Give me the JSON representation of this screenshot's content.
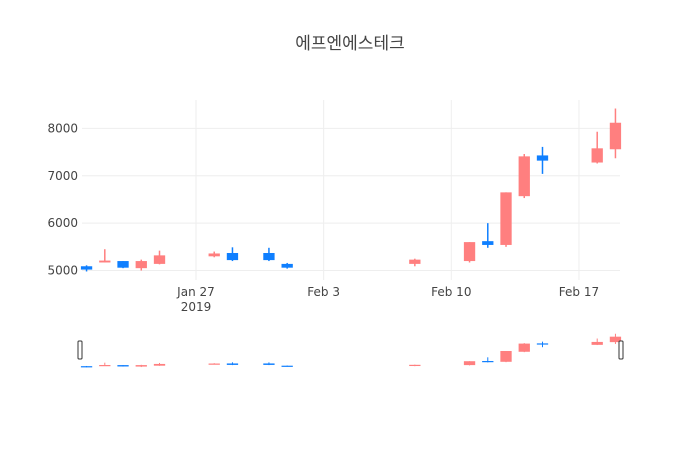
{
  "chart_data": {
    "type": "candlestick",
    "title": "에프엔에스테크",
    "colors": {
      "increasing": "#ff7f7f",
      "decreasing": "#0f7fff"
    },
    "ylim": [
      4800,
      8600
    ],
    "y_ticks": [
      5000,
      6000,
      7000,
      8000
    ],
    "y_tick_labels": [
      "5000",
      "6000",
      "7000",
      "8000"
    ],
    "x_ticks": [
      {
        "x": "2019-01-27",
        "label": "Jan 27",
        "sublabel": "2019"
      },
      {
        "x": "2019-02-03",
        "label": "Feb 3",
        "sublabel": ""
      },
      {
        "x": "2019-02-10",
        "label": "Feb 10",
        "sublabel": ""
      },
      {
        "x": "2019-02-17",
        "label": "Feb 17",
        "sublabel": ""
      }
    ],
    "xlim": [
      "2019-01-20T18:00",
      "2019-02-19T06:00"
    ],
    "grid": true,
    "rangeslider": true,
    "candles": [
      {
        "x": "2019-01-21",
        "open": 5090,
        "high": 5110,
        "low": 4980,
        "close": 5020
      },
      {
        "x": "2019-01-22",
        "open": 5170,
        "high": 5450,
        "low": 5170,
        "close": 5210
      },
      {
        "x": "2019-01-23",
        "open": 5200,
        "high": 5200,
        "low": 5050,
        "close": 5060
      },
      {
        "x": "2019-01-24",
        "open": 5050,
        "high": 5230,
        "low": 5000,
        "close": 5200
      },
      {
        "x": "2019-01-25",
        "open": 5140,
        "high": 5420,
        "low": 5130,
        "close": 5320
      },
      {
        "x": "2019-01-28",
        "open": 5300,
        "high": 5400,
        "low": 5280,
        "close": 5360
      },
      {
        "x": "2019-01-29",
        "open": 5370,
        "high": 5490,
        "low": 5200,
        "close": 5220
      },
      {
        "x": "2019-01-31",
        "open": 5370,
        "high": 5480,
        "low": 5200,
        "close": 5220
      },
      {
        "x": "2019-02-01",
        "open": 5140,
        "high": 5160,
        "low": 5040,
        "close": 5060
      },
      {
        "x": "2019-02-08",
        "open": 5140,
        "high": 5250,
        "low": 5090,
        "close": 5230
      },
      {
        "x": "2019-02-11",
        "open": 5200,
        "high": 5600,
        "low": 5170,
        "close": 5600
      },
      {
        "x": "2019-02-12",
        "open": 5620,
        "high": 6000,
        "low": 5480,
        "close": 5540
      },
      {
        "x": "2019-02-13",
        "open": 5540,
        "high": 6650,
        "low": 5500,
        "close": 6650
      },
      {
        "x": "2019-02-14",
        "open": 6570,
        "high": 7460,
        "low": 6530,
        "close": 7410
      },
      {
        "x": "2019-02-15",
        "open": 7430,
        "high": 7610,
        "low": 7040,
        "close": 7320
      },
      {
        "x": "2019-02-18",
        "open": 7280,
        "high": 7930,
        "low": 7260,
        "close": 7580
      },
      {
        "x": "2019-02-19",
        "open": 7560,
        "high": 8420,
        "low": 7370,
        "close": 8120
      }
    ]
  }
}
